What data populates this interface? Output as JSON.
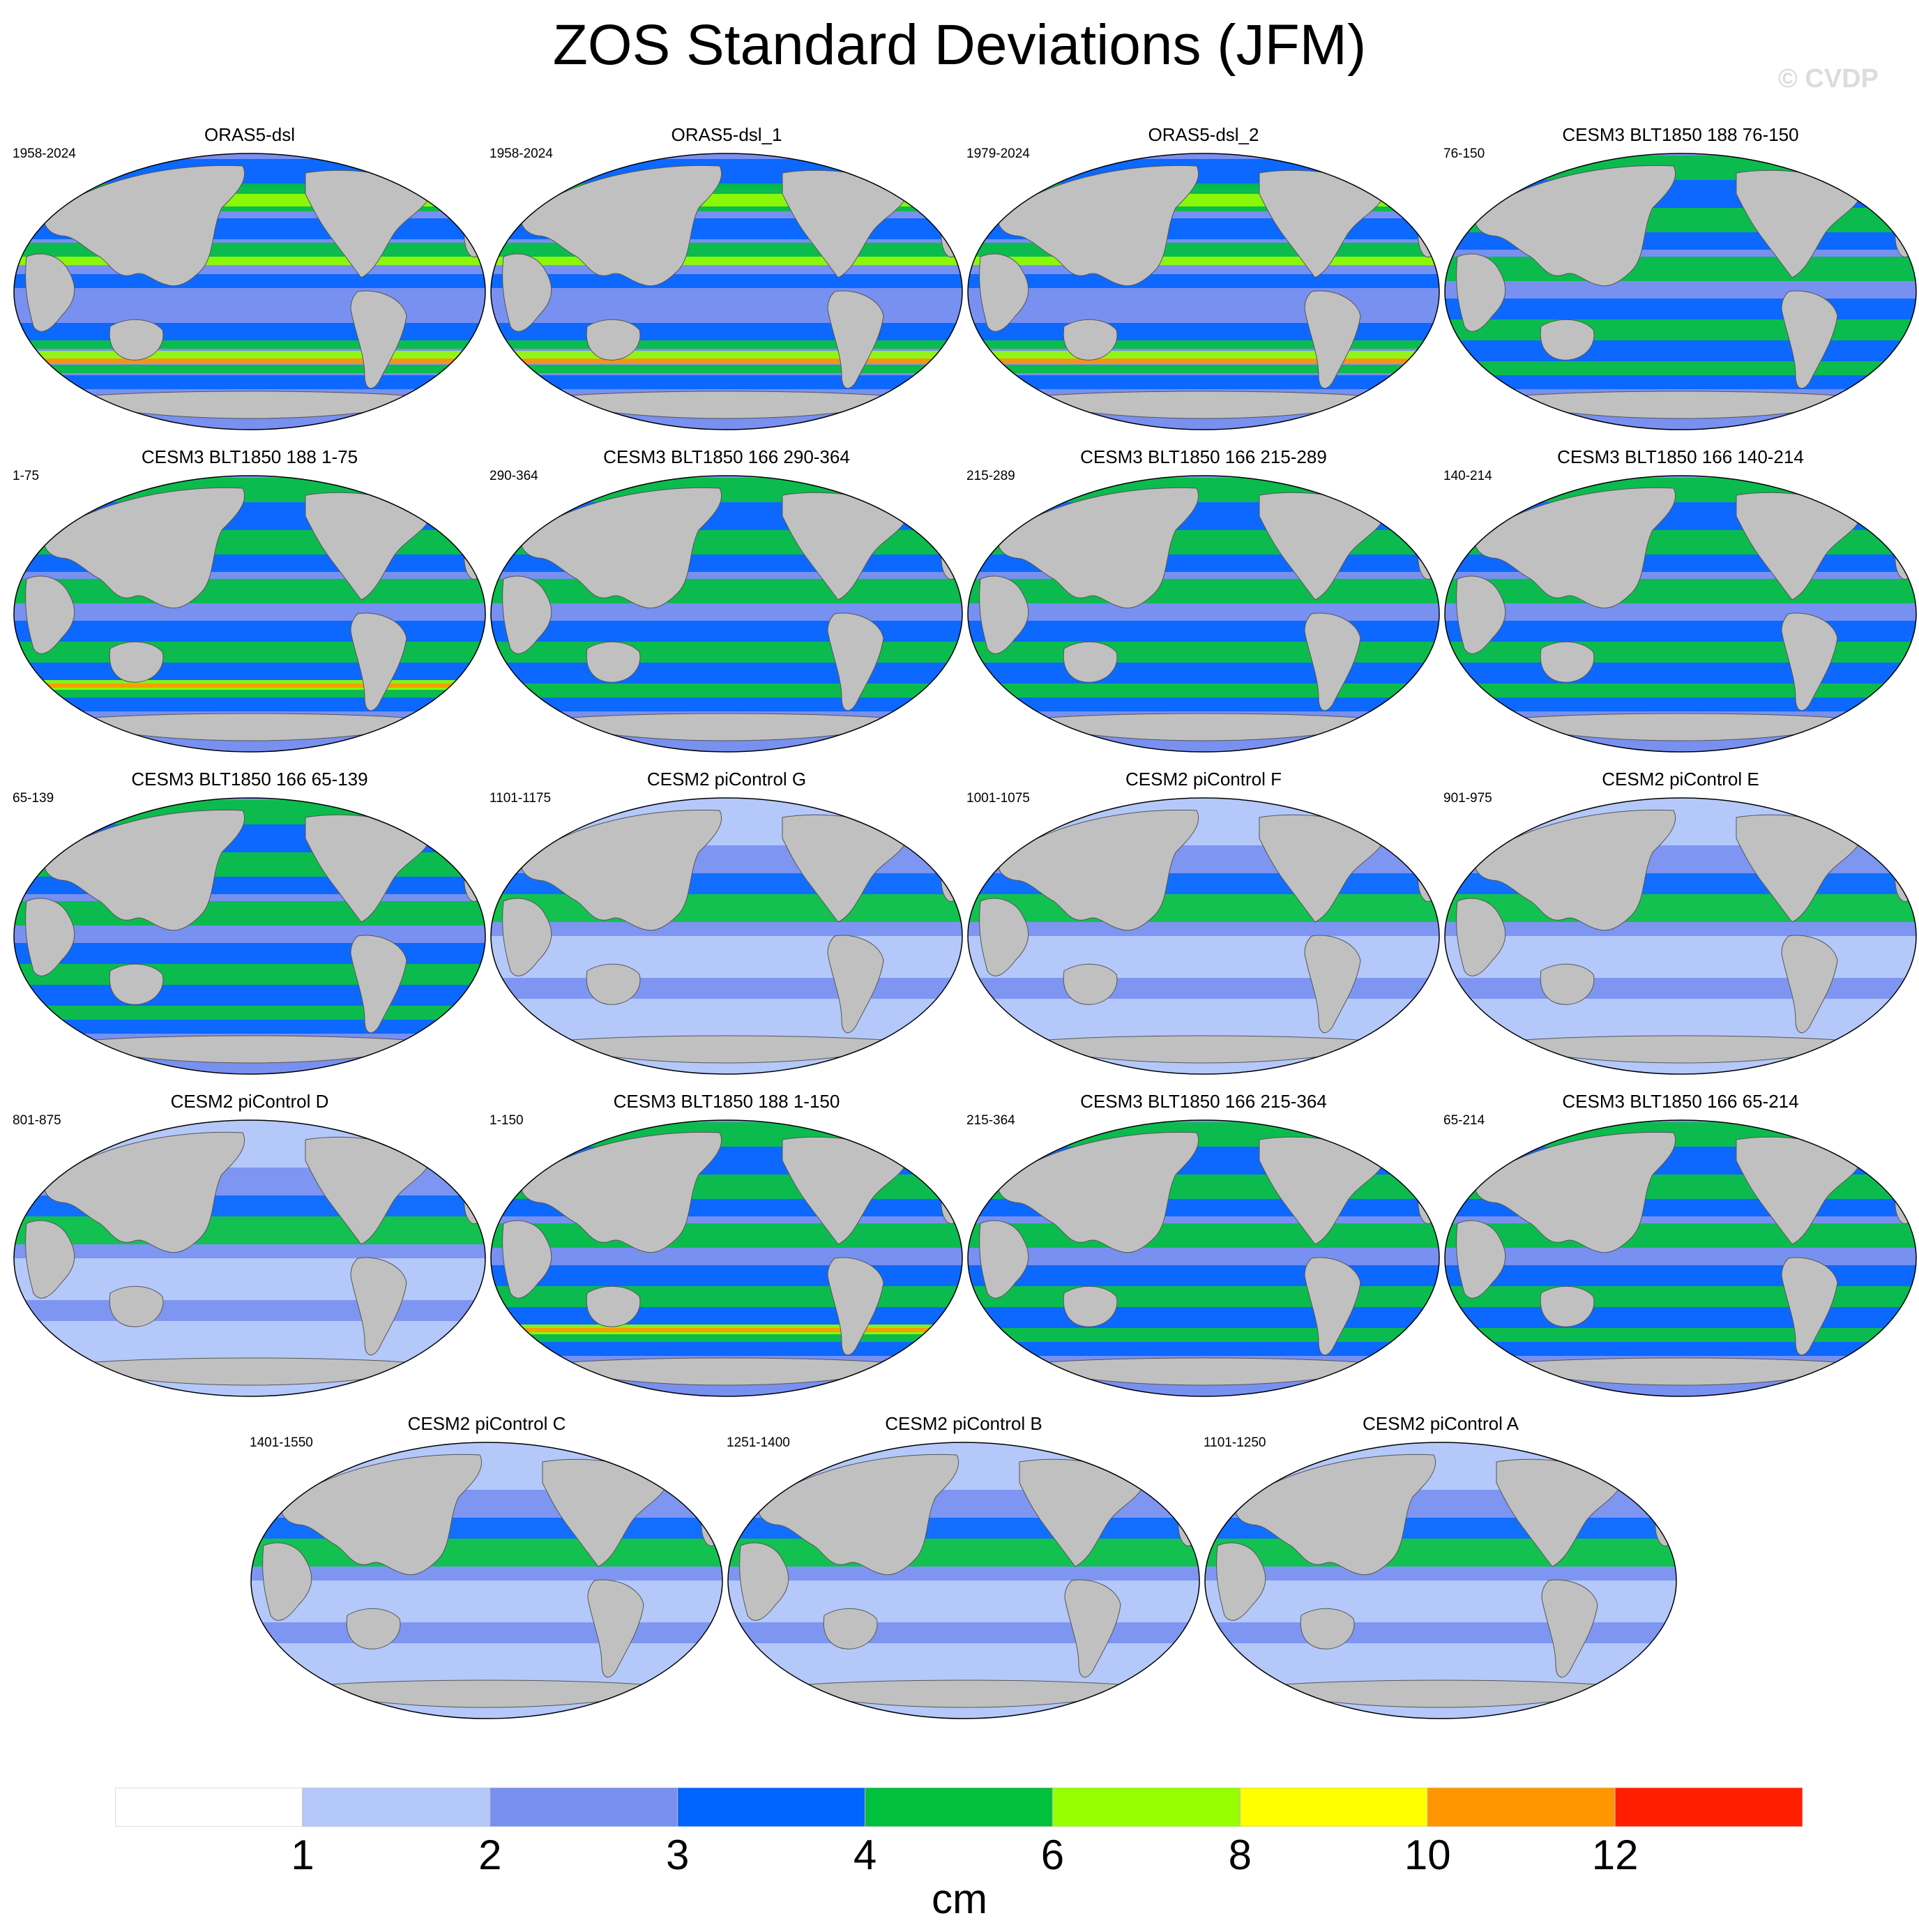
{
  "title": "ZOS Standard Deviations (JFM)",
  "watermark": "© CVDP",
  "colors": {
    "land": "#c0c0c0",
    "levels": [
      "#ffffff",
      "#b4c8fa",
      "#7890f0",
      "#0064ff",
      "#00c03c",
      "#96ff00",
      "#ffff00",
      "#ff9600",
      "#ff1e00"
    ]
  },
  "panels": [
    {
      "title": "ORAS5-dsl",
      "years": "1958-2024",
      "style": "oras"
    },
    {
      "title": "ORAS5-dsl_1",
      "years": "1958-2024",
      "style": "oras"
    },
    {
      "title": "ORAS5-dsl_2",
      "years": "1979-2024",
      "style": "oras"
    },
    {
      "title": "CESM3 BLT1850 188 76-150",
      "years": "76-150",
      "style": "cesm3"
    },
    {
      "title": "CESM3 BLT1850 188 1-75",
      "years": "1-75",
      "style": "cesm3hot"
    },
    {
      "title": "CESM3 BLT1850 166 290-364",
      "years": "290-364",
      "style": "cesm3"
    },
    {
      "title": "CESM3 BLT1850 166 215-289",
      "years": "215-289",
      "style": "cesm3"
    },
    {
      "title": "CESM3 BLT1850 166 140-214",
      "years": "140-214",
      "style": "cesm3"
    },
    {
      "title": "CESM3 BLT1850 166 65-139",
      "years": "65-139",
      "style": "cesm3"
    },
    {
      "title": "CESM2 piControl G",
      "years": "1101-1175",
      "style": "cesm2"
    },
    {
      "title": "CESM2 piControl F",
      "years": "1001-1075",
      "style": "cesm2"
    },
    {
      "title": "CESM2 piControl E",
      "years": "901-975",
      "style": "cesm2"
    },
    {
      "title": "CESM2 piControl D",
      "years": "801-875",
      "style": "cesm2"
    },
    {
      "title": "CESM3 BLT1850 188 1-150",
      "years": "1-150",
      "style": "cesm3hot"
    },
    {
      "title": "CESM3 BLT1850 166 215-364",
      "years": "215-364",
      "style": "cesm3"
    },
    {
      "title": "CESM3 BLT1850 166 65-214",
      "years": "65-214",
      "style": "cesm3"
    },
    {
      "title": "CESM2 piControl C",
      "years": "1401-1550",
      "style": "cesm2"
    },
    {
      "title": "CESM2 piControl B",
      "years": "1251-1400",
      "style": "cesm2"
    },
    {
      "title": "CESM2 piControl A",
      "years": "1101-1250",
      "style": "cesm2"
    }
  ],
  "colorbar": {
    "labels": [
      "1",
      "2",
      "3",
      "4",
      "6",
      "8",
      "10",
      "12"
    ],
    "units": "cm"
  }
}
